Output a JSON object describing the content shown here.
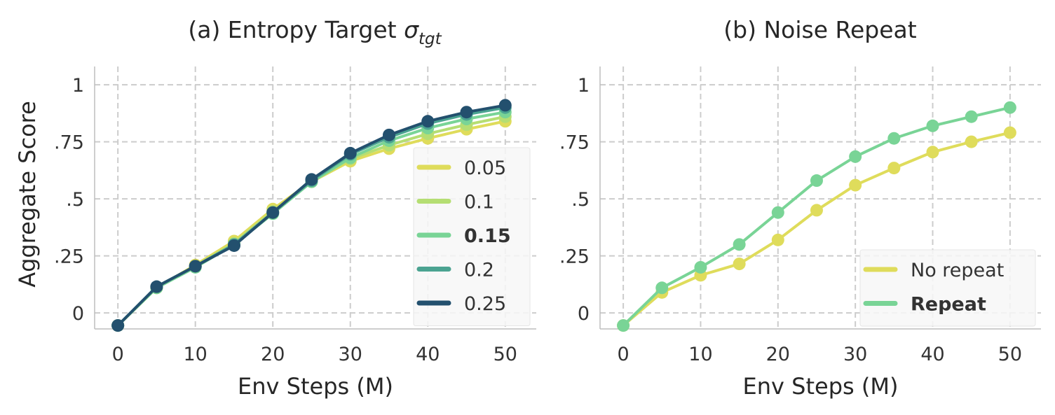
{
  "chart_data": [
    {
      "type": "line",
      "title": "(a) Entropy Target ",
      "title_symbol": "σ",
      "title_subscript": "tgt",
      "xlabel": "Env Steps (M)",
      "ylabel": "Aggregate Score",
      "xlim": [
        -3,
        54
      ],
      "ylim": [
        -0.07,
        1.08
      ],
      "xticks": [
        0,
        10,
        20,
        30,
        40,
        50
      ],
      "xtick_labels": [
        "0",
        "10",
        "20",
        "30",
        "40",
        "50"
      ],
      "yticks": [
        0,
        0.25,
        0.5,
        0.75,
        1
      ],
      "ytick_labels": [
        "0",
        ".25",
        ".5",
        ".75",
        "1"
      ],
      "grid": true,
      "legend_position": "lower-right",
      "x": [
        0,
        5,
        10,
        15,
        20,
        25,
        30,
        35,
        40,
        45,
        50
      ],
      "series": [
        {
          "name": "0.05",
          "color": "#dfdc5b",
          "bold": false,
          "values": [
            -0.055,
            0.11,
            0.21,
            0.315,
            0.455,
            0.575,
            0.665,
            0.72,
            0.765,
            0.805,
            0.84
          ]
        },
        {
          "name": "0.1",
          "color": "#b5de73",
          "bold": false,
          "values": [
            -0.055,
            0.11,
            0.205,
            0.305,
            0.445,
            0.575,
            0.675,
            0.735,
            0.785,
            0.825,
            0.86
          ]
        },
        {
          "name": "0.15",
          "color": "#79d496",
          "bold": true,
          "values": [
            -0.055,
            0.11,
            0.2,
            0.3,
            0.435,
            0.575,
            0.68,
            0.755,
            0.81,
            0.85,
            0.88
          ]
        },
        {
          "name": "0.2",
          "color": "#4ba391",
          "bold": false,
          "values": [
            -0.055,
            0.115,
            0.205,
            0.3,
            0.44,
            0.58,
            0.695,
            0.77,
            0.83,
            0.87,
            0.9
          ]
        },
        {
          "name": "0.25",
          "color": "#23506e",
          "bold": false,
          "values": [
            -0.055,
            0.115,
            0.205,
            0.295,
            0.44,
            0.585,
            0.7,
            0.78,
            0.84,
            0.88,
            0.91
          ]
        }
      ]
    },
    {
      "type": "line",
      "title": "(b) Noise Repeat",
      "xlabel": "Env Steps (M)",
      "ylabel": "",
      "xlim": [
        -3,
        54
      ],
      "ylim": [
        -0.07,
        1.08
      ],
      "xticks": [
        0,
        10,
        20,
        30,
        40,
        50
      ],
      "xtick_labels": [
        "0",
        "10",
        "20",
        "30",
        "40",
        "50"
      ],
      "yticks": [
        0,
        0.25,
        0.5,
        0.75,
        1
      ],
      "ytick_labels": [
        "0",
        ".25",
        ".5",
        ".75",
        "1"
      ],
      "grid": true,
      "legend_position": "lower-right",
      "x": [
        0,
        5,
        10,
        15,
        20,
        25,
        30,
        35,
        40,
        45,
        50
      ],
      "series": [
        {
          "name": "No repeat",
          "color": "#dfdc5b",
          "bold": false,
          "values": [
            -0.055,
            0.09,
            0.165,
            0.215,
            0.32,
            0.45,
            0.56,
            0.635,
            0.705,
            0.75,
            0.79
          ]
        },
        {
          "name": "Repeat",
          "color": "#79d496",
          "bold": true,
          "values": [
            -0.055,
            0.11,
            0.2,
            0.3,
            0.44,
            0.58,
            0.685,
            0.765,
            0.82,
            0.86,
            0.9
          ]
        }
      ]
    }
  ]
}
